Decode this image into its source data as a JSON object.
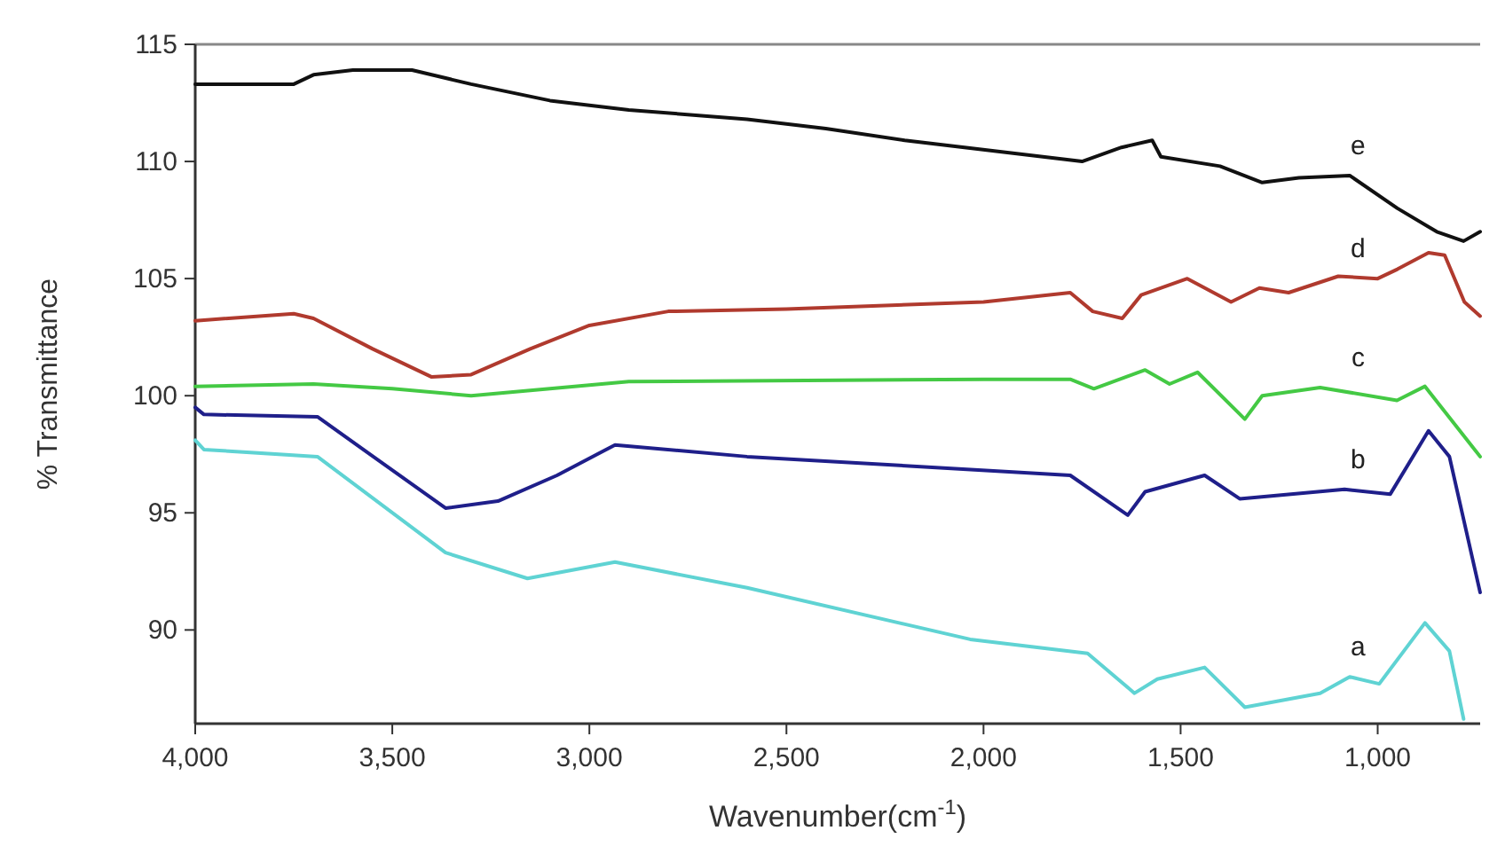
{
  "chart_data": {
    "type": "line",
    "xlabel": "Wavenumber(cm$^{-1}$)",
    "ylabel": "% Transmittance",
    "xlim": [
      4000,
      740
    ],
    "ylim": [
      86,
      115
    ],
    "xticks": [
      {
        "value": 4000,
        "label": "4,000"
      },
      {
        "value": 3500,
        "label": "3,500"
      },
      {
        "value": 3000,
        "label": "3,000"
      },
      {
        "value": 2500,
        "label": "2,500"
      },
      {
        "value": 2000,
        "label": "2,000"
      },
      {
        "value": 1500,
        "label": "1,500"
      },
      {
        "value": 1000,
        "label": "1,000"
      }
    ],
    "yticks": [
      90,
      95,
      100,
      105,
      110,
      115
    ],
    "line_style": "solid",
    "series": [
      {
        "name": "a",
        "color": "#5fd3d3",
        "x": [
          4000,
          3978,
          3690,
          3365,
          3157,
          2935,
          2600,
          2034,
          1736,
          1617,
          1559,
          1439,
          1337,
          1146,
          1071,
          996,
          880,
          818,
          782
        ],
        "values": [
          98.1,
          97.7,
          97.4,
          93.3,
          92.2,
          92.9,
          91.8,
          89.6,
          89.0,
          87.3,
          87.9,
          88.4,
          86.7,
          87.3,
          88.0,
          87.7,
          90.3,
          89.1,
          86.2
        ]
      },
      {
        "name": "b",
        "color": "#1f1f8a",
        "x": [
          4000,
          3978,
          3690,
          3365,
          3232,
          3082,
          2935,
          2600,
          1780,
          1634,
          1590,
          1439,
          1350,
          1084,
          968,
          871,
          818,
          740
        ],
        "values": [
          99.5,
          99.2,
          99.1,
          95.2,
          95.5,
          96.6,
          97.9,
          97.4,
          96.6,
          94.9,
          95.9,
          96.6,
          95.6,
          96.0,
          95.8,
          98.5,
          97.4,
          91.6
        ]
      },
      {
        "name": "c",
        "color": "#44c944",
        "x": [
          4000,
          3700,
          3500,
          3300,
          3100,
          2900,
          2000,
          1780,
          1720,
          1590,
          1528,
          1457,
          1337,
          1293,
          1146,
          951,
          880,
          740
        ],
        "values": [
          100.4,
          100.5,
          100.3,
          100.0,
          100.3,
          100.6,
          100.7,
          100.7,
          100.3,
          101.1,
          100.5,
          101.0,
          99.0,
          100.0,
          100.35,
          99.8,
          100.4,
          97.4
        ]
      },
      {
        "name": "d",
        "color": "#b03a2e",
        "x": [
          4000,
          3750,
          3700,
          3550,
          3400,
          3300,
          3150,
          3000,
          2800,
          2500,
          2000,
          1780,
          1723,
          1648,
          1600,
          1483,
          1372,
          1300,
          1226,
          1100,
          1000,
          950,
          871,
          830,
          780,
          740
        ],
        "values": [
          103.2,
          103.5,
          103.3,
          102.0,
          100.8,
          100.9,
          102.0,
          103.0,
          103.6,
          103.7,
          104.0,
          104.4,
          103.6,
          103.3,
          104.3,
          105.0,
          104.0,
          104.6,
          104.4,
          105.1,
          105.0,
          105.4,
          106.1,
          106.0,
          104.0,
          103.4
        ]
      },
      {
        "name": "e",
        "color": "#111111",
        "x": [
          4000,
          3750,
          3700,
          3600,
          3450,
          3300,
          3100,
          2900,
          2600,
          2400,
          2200,
          1750,
          1650,
          1572,
          1550,
          1400,
          1293,
          1200,
          1071,
          950,
          850,
          782,
          740
        ],
        "values": [
          113.3,
          113.3,
          113.7,
          113.9,
          113.9,
          113.3,
          112.6,
          112.2,
          111.8,
          111.4,
          110.9,
          110.0,
          110.6,
          110.9,
          110.2,
          109.8,
          109.1,
          109.3,
          109.4,
          108.0,
          107.0,
          106.6,
          107.0
        ]
      }
    ]
  }
}
